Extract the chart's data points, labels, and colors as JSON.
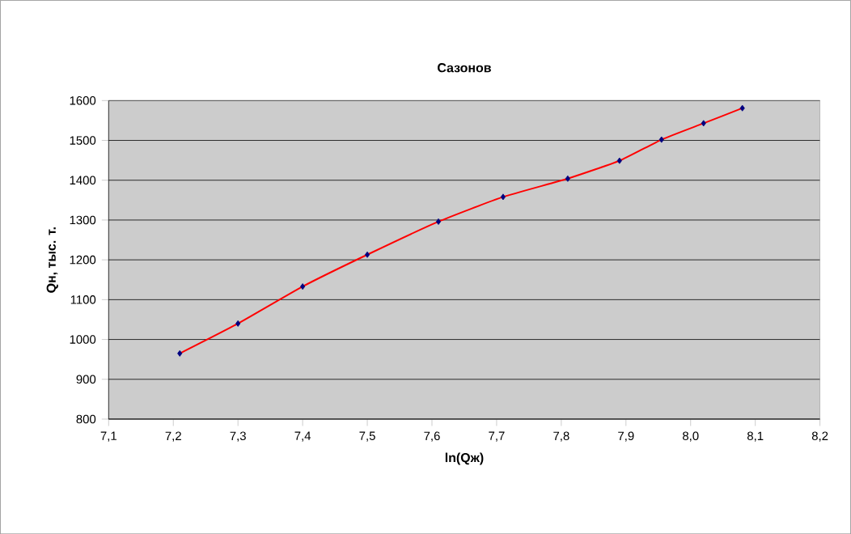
{
  "chart_data": {
    "type": "line",
    "title": "Сазонов",
    "xlabel": "ln(Qж)",
    "ylabel": "Qн, тыс. т.",
    "series": [
      {
        "color": "#ff0000",
        "marker": "none",
        "x": [
          7.21,
          7.3,
          7.4,
          7.5,
          7.61,
          7.71,
          7.81,
          7.89,
          7.955,
          8.02,
          8.08
        ],
        "values": [
          965,
          1040,
          1133,
          1213,
          1296,
          1358,
          1404,
          1449,
          1502,
          1543,
          1581
        ]
      },
      {
        "type": "scatter",
        "color": "#000080",
        "marker": "diamond",
        "x": [
          7.21,
          7.3,
          7.4,
          7.5,
          7.61,
          7.71,
          7.81,
          7.89,
          7.955,
          8.02,
          8.08
        ],
        "values": [
          965,
          1040,
          1133,
          1213,
          1296,
          1358,
          1404,
          1449,
          1502,
          1543,
          1581
        ]
      }
    ],
    "xlim": [
      7.1,
      8.2
    ],
    "ylim": [
      800,
      1600
    ],
    "xticks": [
      {
        "value": 7.1,
        "label": "7,1"
      },
      {
        "value": 7.2,
        "label": "7,2"
      },
      {
        "value": 7.3,
        "label": "7,3"
      },
      {
        "value": 7.4,
        "label": "7,4"
      },
      {
        "value": 7.5,
        "label": "7,5"
      },
      {
        "value": 7.6,
        "label": "7,6"
      },
      {
        "value": 7.7,
        "label": "7,7"
      },
      {
        "value": 7.8,
        "label": "7,8"
      },
      {
        "value": 7.9,
        "label": "7,9"
      },
      {
        "value": 8.0,
        "label": "8,0"
      },
      {
        "value": 8.1,
        "label": "8,1"
      },
      {
        "value": 8.2,
        "label": "8,2"
      }
    ],
    "yticks": [
      800,
      900,
      1000,
      1100,
      1200,
      1300,
      1400,
      1500,
      1600
    ],
    "grid": "y"
  }
}
